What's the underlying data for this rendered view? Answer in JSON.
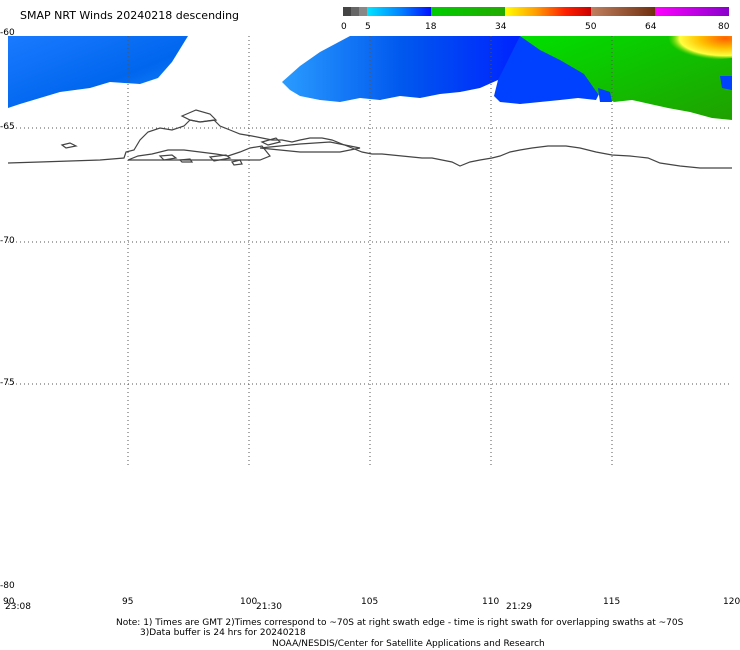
{
  "title": "SMAP NRT Winds  20240218 descending",
  "colorbar": {
    "labels": [
      "0",
      "5",
      "18",
      "34",
      "50",
      "64",
      "80"
    ]
  },
  "map": {
    "lat_labels": [
      "-60",
      "-65",
      "-70",
      "-75",
      "-80"
    ],
    "lon_labels": [
      "90",
      "95",
      "100",
      "105",
      "110",
      "115",
      "120"
    ],
    "time_labels": [
      "23:08",
      "21:30",
      "21:29"
    ]
  },
  "notes": {
    "line1": "Note: 1) Times are GMT 2)Times correspond to ~70S at right swath edge - time is right swath for overlapping swaths at ~70S",
    "line2": "3)Data buffer is 24 hrs for 20240218",
    "line3": "NOAA/NESDIS/Center for Satellite Applications and Research"
  }
}
